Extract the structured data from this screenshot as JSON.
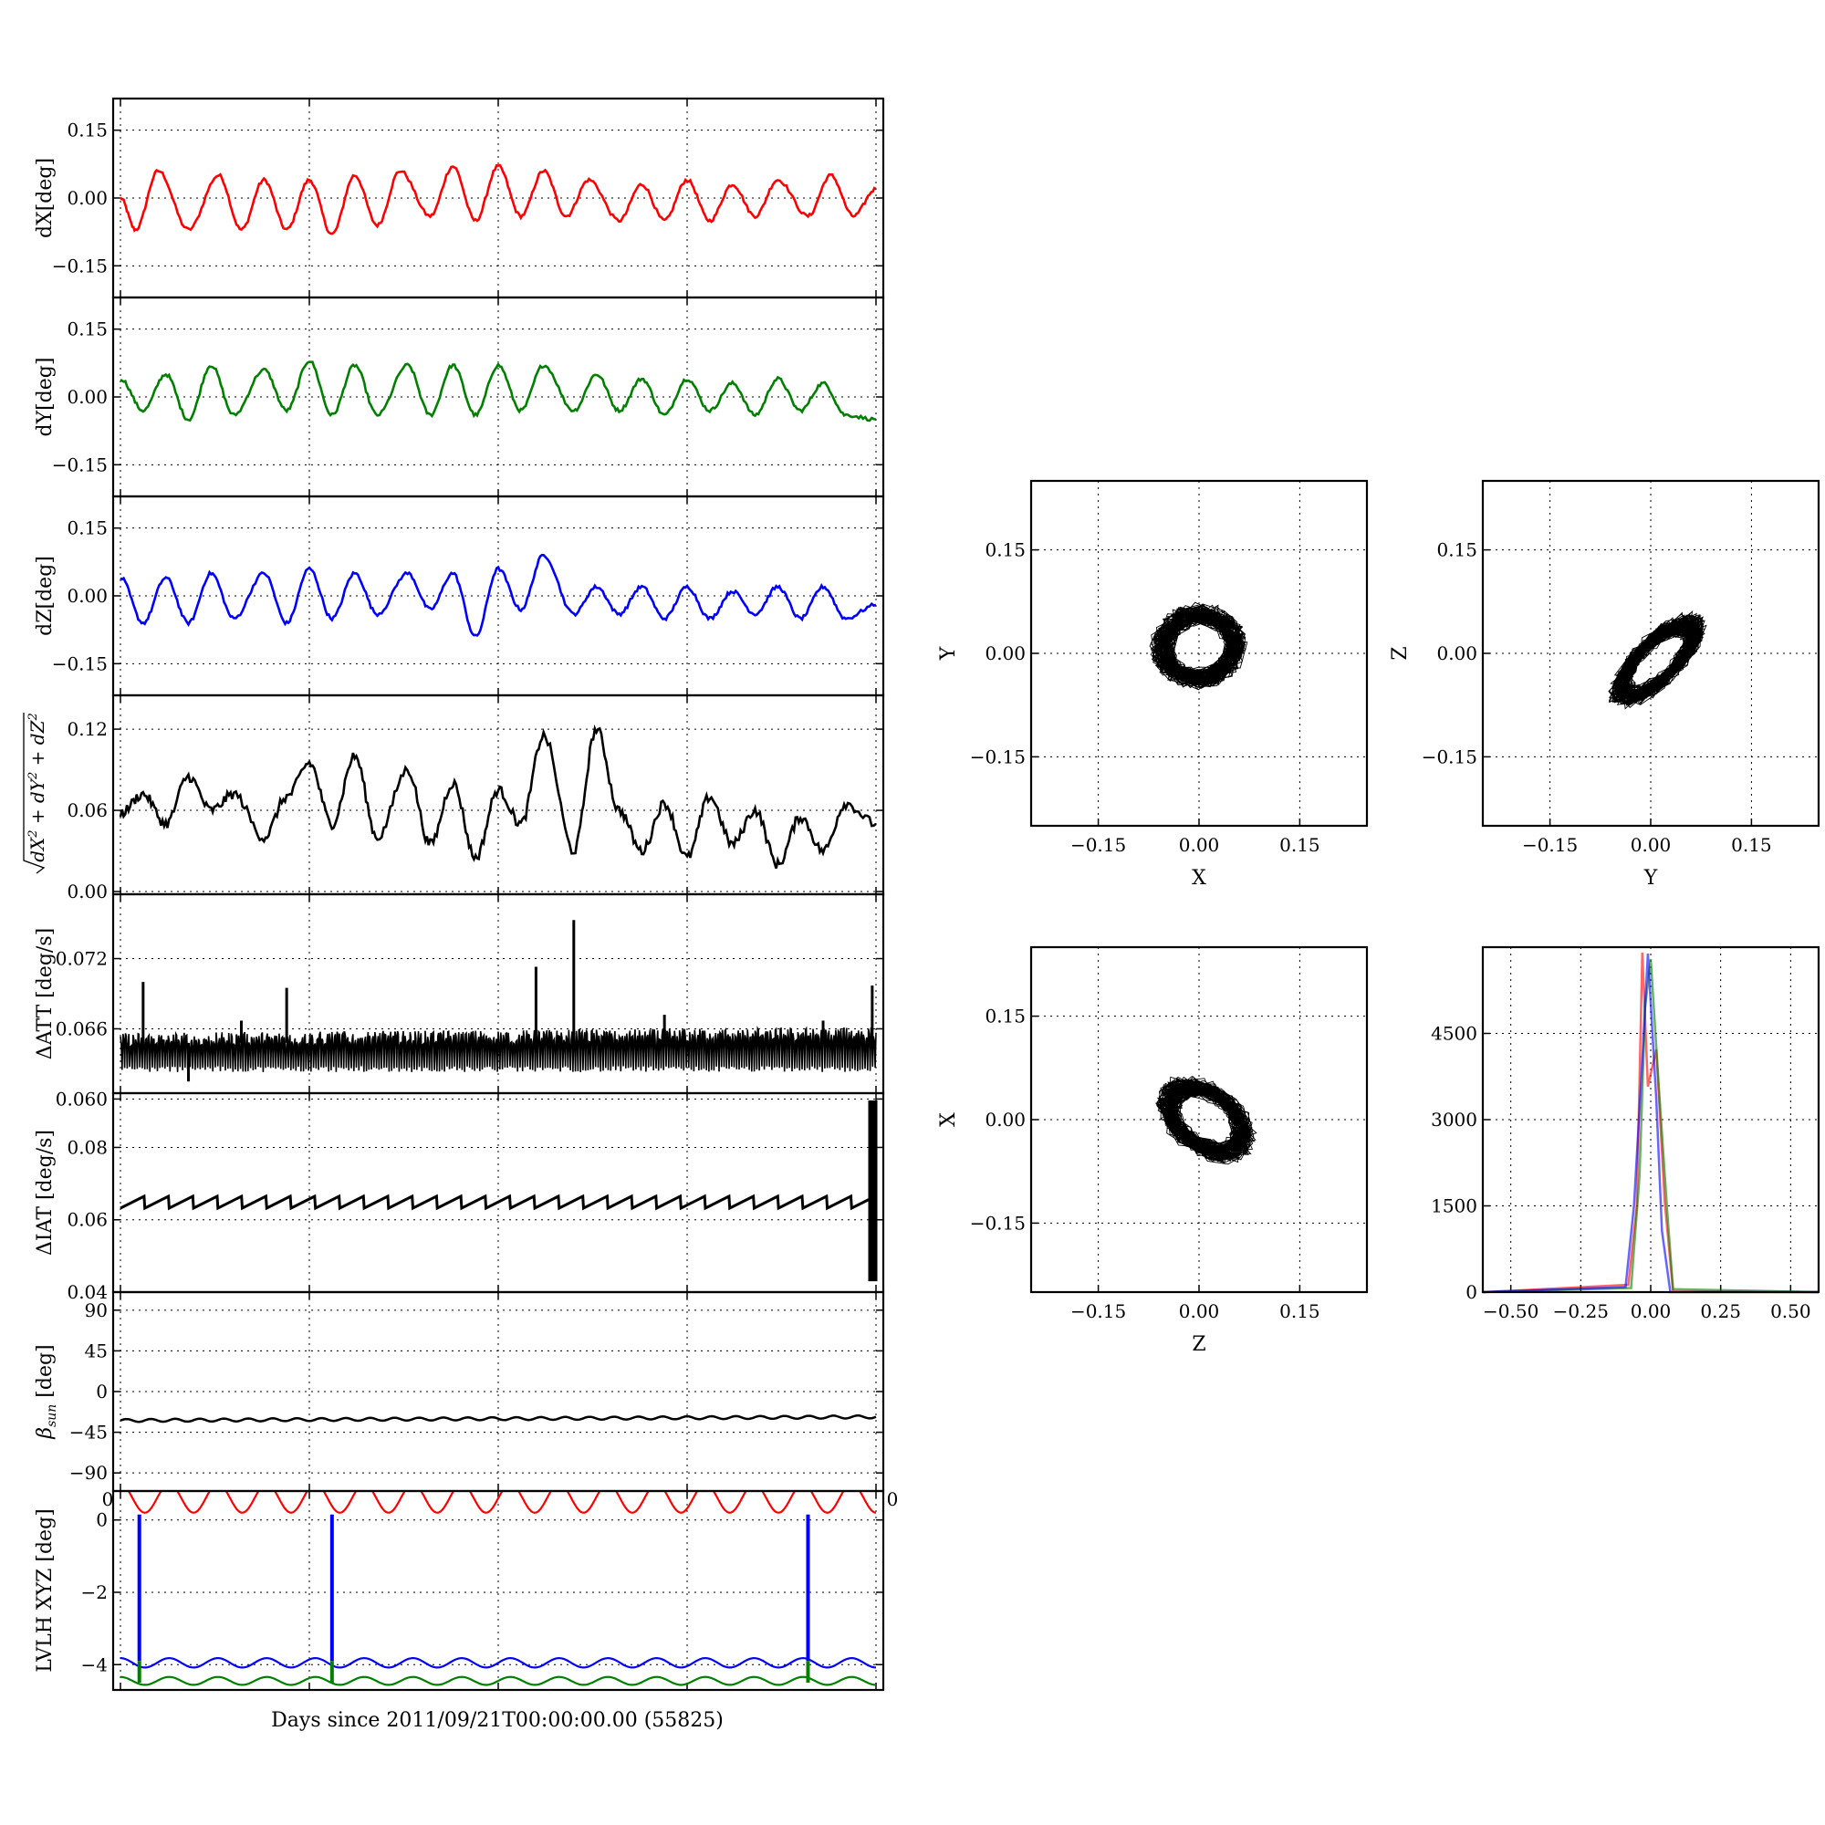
{
  "figure": {
    "xlabel": "Days since 2011/09/21T00:00:00.00 (55825)"
  },
  "chart_data": [
    {
      "id": "dX",
      "type": "line",
      "ylabel": "dX[deg]",
      "ylim": [
        -0.22,
        0.22
      ],
      "yticks": [
        -0.15,
        0.0,
        0.15
      ],
      "ytick_labels": [
        "−0.15",
        "0.00",
        "0.15"
      ],
      "grid": true,
      "series": [
        {
          "color": "#ff0000",
          "x": [
            0,
            0.02,
            0.05,
            0.09,
            0.13,
            0.16,
            0.19,
            0.22,
            0.25,
            0.28,
            0.31,
            0.34,
            0.37,
            0.41,
            0.44,
            0.47,
            0.5,
            0.53,
            0.56,
            0.59,
            0.62,
            0.66,
            0.69,
            0.72,
            0.75,
            0.78,
            0.81,
            0.84,
            0.87,
            0.91,
            0.94,
            0.97,
            1.0
          ],
          "y": [
            0.0,
            -0.07,
            0.06,
            -0.07,
            0.05,
            -0.07,
            0.04,
            -0.07,
            0.04,
            -0.08,
            0.05,
            -0.06,
            0.06,
            -0.04,
            0.07,
            -0.05,
            0.07,
            -0.04,
            0.06,
            -0.04,
            0.04,
            -0.05,
            0.03,
            -0.05,
            0.04,
            -0.05,
            0.03,
            -0.04,
            0.04,
            -0.04,
            0.05,
            -0.04,
            0.02
          ]
        }
      ]
    },
    {
      "id": "dY",
      "type": "line",
      "ylabel": "dY[deg]",
      "ylim": [
        -0.22,
        0.22
      ],
      "yticks": [
        -0.15,
        0.0,
        0.15
      ],
      "ytick_labels": [
        "−0.15",
        "0.00",
        "0.15"
      ],
      "grid": true,
      "series": [
        {
          "color": "#008000",
          "x": [
            0,
            0.03,
            0.06,
            0.09,
            0.12,
            0.15,
            0.19,
            0.22,
            0.25,
            0.28,
            0.31,
            0.34,
            0.38,
            0.41,
            0.44,
            0.47,
            0.5,
            0.53,
            0.56,
            0.6,
            0.63,
            0.66,
            0.69,
            0.72,
            0.75,
            0.78,
            0.81,
            0.84,
            0.87,
            0.9,
            0.93,
            0.96,
            1.0
          ],
          "y": [
            0.04,
            -0.03,
            0.05,
            -0.05,
            0.07,
            -0.04,
            0.06,
            -0.03,
            0.08,
            -0.04,
            0.07,
            -0.04,
            0.07,
            -0.04,
            0.07,
            -0.04,
            0.07,
            -0.03,
            0.07,
            -0.03,
            0.05,
            -0.03,
            0.04,
            -0.04,
            0.04,
            -0.03,
            0.03,
            -0.04,
            0.04,
            -0.03,
            0.03,
            -0.04,
            -0.05
          ]
        }
      ]
    },
    {
      "id": "dZ",
      "type": "line",
      "ylabel": "dZ[deg]",
      "ylim": [
        -0.22,
        0.22
      ],
      "yticks": [
        -0.15,
        0.0,
        0.15
      ],
      "ytick_labels": [
        "−0.15",
        "0.00",
        "0.15"
      ],
      "grid": true,
      "series": [
        {
          "color": "#0000ff",
          "x": [
            0,
            0.03,
            0.06,
            0.09,
            0.12,
            0.15,
            0.19,
            0.22,
            0.25,
            0.28,
            0.31,
            0.34,
            0.38,
            0.41,
            0.44,
            0.47,
            0.5,
            0.53,
            0.56,
            0.6,
            0.63,
            0.66,
            0.69,
            0.72,
            0.75,
            0.78,
            0.81,
            0.84,
            0.87,
            0.9,
            0.93,
            0.96,
            1.0
          ],
          "y": [
            0.04,
            -0.06,
            0.04,
            -0.06,
            0.05,
            -0.05,
            0.05,
            -0.06,
            0.06,
            -0.05,
            0.05,
            -0.04,
            0.05,
            -0.03,
            0.05,
            -0.09,
            0.06,
            -0.03,
            0.09,
            -0.04,
            0.02,
            -0.04,
            0.02,
            -0.05,
            0.02,
            -0.05,
            0.01,
            -0.04,
            0.02,
            -0.05,
            0.02,
            -0.05,
            -0.02
          ]
        }
      ]
    },
    {
      "id": "total",
      "type": "line",
      "ylabel": "sqrt(dX^2+dY^2+dZ^2)",
      "ylim": [
        -0.002,
        0.145
      ],
      "yticks": [
        0.0,
        0.06,
        0.12
      ],
      "ytick_labels": [
        "0.00",
        "0.06",
        "0.12"
      ],
      "grid": true,
      "series": [
        {
          "color": "#000000",
          "x": [
            0,
            0.03,
            0.06,
            0.09,
            0.12,
            0.15,
            0.19,
            0.22,
            0.25,
            0.28,
            0.31,
            0.34,
            0.38,
            0.41,
            0.44,
            0.47,
            0.5,
            0.53,
            0.56,
            0.6,
            0.63,
            0.66,
            0.69,
            0.72,
            0.75,
            0.78,
            0.81,
            0.84,
            0.87,
            0.9,
            0.93,
            0.96,
            1.0
          ],
          "y": [
            0.058,
            0.072,
            0.05,
            0.085,
            0.06,
            0.072,
            0.04,
            0.07,
            0.095,
            0.05,
            0.1,
            0.04,
            0.09,
            0.035,
            0.08,
            0.025,
            0.075,
            0.05,
            0.115,
            0.03,
            0.12,
            0.06,
            0.03,
            0.065,
            0.025,
            0.07,
            0.035,
            0.06,
            0.02,
            0.055,
            0.03,
            0.065,
            0.05
          ]
        }
      ]
    },
    {
      "id": "dATT",
      "type": "line",
      "ylabel": "ΔATT [deg/s]",
      "ylim": [
        0.0605,
        0.0775
      ],
      "yticks": [
        0.06,
        0.066,
        0.072
      ],
      "ytick_labels": [
        "0.060",
        "0.066",
        "0.072"
      ],
      "grid": true,
      "band": [
        0.0623,
        0.0655
      ],
      "spikes": [
        [
          0.03,
          0.07
        ],
        [
          0.09,
          0.0615
        ],
        [
          0.16,
          0.0667
        ],
        [
          0.22,
          0.0695
        ],
        [
          0.55,
          0.0713
        ],
        [
          0.6,
          0.0753
        ],
        [
          0.72,
          0.0672
        ],
        [
          0.93,
          0.0667
        ],
        [
          0.995,
          0.0697
        ]
      ],
      "series": [
        {
          "color": "#000000",
          "x": [
            0,
            1
          ],
          "y": [
            0.0648,
            0.0653
          ]
        }
      ]
    },
    {
      "id": "dIAT",
      "type": "line",
      "ylabel": "ΔIAT [deg/s]",
      "ylim": [
        0.04,
        0.095
      ],
      "yticks": [
        0.04,
        0.06,
        0.08
      ],
      "ytick_labels": [
        "0.04",
        "0.06",
        "0.08"
      ],
      "grid": true,
      "sawtooth": {
        "low": 0.0632,
        "high": 0.0665,
        "periods": 31
      },
      "burst": {
        "x": 0.997,
        "ymin": 0.043,
        "ymax": 0.093
      },
      "series": [
        {
          "color": "#000000",
          "x": [
            0,
            1
          ],
          "y": [
            0.0648,
            0.0648
          ]
        }
      ]
    },
    {
      "id": "beta",
      "type": "line",
      "ylabel": "βsun [deg]",
      "ylim": [
        -110,
        110
      ],
      "yticks": [
        -90,
        -45,
        0,
        45,
        90
      ],
      "ytick_labels": [
        "−90",
        "−45",
        "0",
        "45",
        "90"
      ],
      "grid": true,
      "series": [
        {
          "color": "#000000",
          "x": [
            0,
            1
          ],
          "y": [
            -32,
            -28
          ]
        }
      ]
    },
    {
      "id": "lvlh",
      "type": "line",
      "ylabel": "LVLH XYZ [deg]",
      "ylim": [
        -4.7,
        0.8
      ],
      "yticks": [
        -4,
        -2,
        0
      ],
      "ytick_labels": [
        "−4",
        "−2",
        "0"
      ],
      "xtick_labels": [
        "0",
        "0"
      ],
      "grid": true,
      "series": [
        {
          "color": "#ff0000",
          "base": 0.6,
          "amp": 0.4,
          "periods": 15.5
        },
        {
          "color": "#0000ff",
          "base": -3.95,
          "amp": 0.13,
          "periods": 15.5
        },
        {
          "color": "#008000",
          "base": -4.45,
          "amp": 0.11,
          "periods": 15.5
        }
      ],
      "spikes": [
        {
          "x": 0.025,
          "color": "#0000ff"
        },
        {
          "x": 0.28,
          "color": "#0000ff"
        },
        {
          "x": 0.91,
          "color": "#0000ff"
        }
      ]
    },
    {
      "id": "scatter_xy",
      "type": "scatter",
      "xlabel": "X",
      "ylabel": "Y",
      "xlim": [
        -0.25,
        0.25
      ],
      "ylim": [
        -0.25,
        0.25
      ],
      "ticks": [
        -0.15,
        0.0,
        0.15
      ],
      "tick_labels": [
        "−0.15",
        "0.00",
        "0.15"
      ],
      "grid": true,
      "cloud": {
        "cx": 0.0,
        "cy": 0.01,
        "rx": 0.07,
        "ry": 0.06,
        "tilt": 0.1
      }
    },
    {
      "id": "scatter_yz",
      "type": "scatter",
      "xlabel": "Y",
      "ylabel": "Z",
      "xlim": [
        -0.25,
        0.25
      ],
      "ylim": [
        -0.25,
        0.25
      ],
      "ticks": [
        -0.15,
        0.0,
        0.15
      ],
      "tick_labels": [
        "−0.15",
        "0.00",
        "0.15"
      ],
      "grid": true,
      "cloud": {
        "cx": 0.01,
        "cy": -0.01,
        "rx": 0.09,
        "ry": 0.035,
        "tilt": 0.75
      }
    },
    {
      "id": "scatter_zx",
      "type": "scatter",
      "xlabel": "Z",
      "ylabel": "X",
      "xlim": [
        -0.25,
        0.25
      ],
      "ylim": [
        -0.25,
        0.25
      ],
      "ticks": [
        -0.15,
        0.0,
        0.15
      ],
      "tick_labels": [
        "−0.15",
        "0.00",
        "0.15"
      ],
      "grid": true,
      "cloud": {
        "cx": 0.01,
        "cy": 0.0,
        "rx": 0.08,
        "ry": 0.05,
        "tilt": -0.6
      }
    },
    {
      "id": "histogram",
      "type": "line",
      "xlim": [
        -0.6,
        0.6
      ],
      "ylim": [
        0,
        6000
      ],
      "xticks": [
        -0.5,
        -0.25,
        0.0,
        0.25,
        0.5
      ],
      "xtick_labels": [
        "−0.50",
        "−0.25",
        "0.00",
        "0.25",
        "0.50"
      ],
      "yticks": [
        0,
        1500,
        3000,
        4500
      ],
      "ytick_labels": [
        "0",
        "1500",
        "3000",
        "4500"
      ],
      "grid": true,
      "series": [
        {
          "color": "#ff0000",
          "x": [
            -0.6,
            -0.08,
            -0.05,
            -0.03,
            -0.01,
            0.02,
            0.05,
            0.08,
            0.6
          ],
          "y": [
            0,
            0,
            1500,
            5800,
            3500,
            4200,
            1500,
            0,
            0
          ]
        },
        {
          "color": "#008000",
          "x": [
            -0.6,
            -0.07,
            -0.04,
            -0.02,
            0.0,
            0.03,
            0.06,
            0.08,
            0.6
          ],
          "y": [
            0,
            0,
            2000,
            5000,
            5900,
            3500,
            1200,
            0,
            0
          ]
        },
        {
          "color": "#0000ff",
          "x": [
            -0.6,
            -0.09,
            -0.06,
            -0.03,
            -0.01,
            0.02,
            0.04,
            0.07,
            0.6
          ],
          "y": [
            0,
            0,
            1500,
            4000,
            5800,
            3500,
            1000,
            0,
            0
          ]
        }
      ]
    }
  ]
}
